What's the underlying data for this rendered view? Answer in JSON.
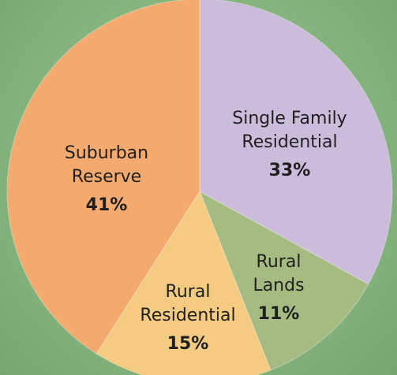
{
  "chart_data": {
    "type": "pie",
    "categories": [
      "Single Family Residential",
      "Rural Lands",
      "Rural Residential",
      "Suburban Reserve"
    ],
    "values": [
      33,
      11,
      15,
      41
    ],
    "value_labels": [
      "33%",
      "11%",
      "15%",
      "41%"
    ],
    "colors": [
      "#cbbcdb",
      "#a6bb82",
      "#f4cb80",
      "#f4aa6e"
    ]
  }
}
